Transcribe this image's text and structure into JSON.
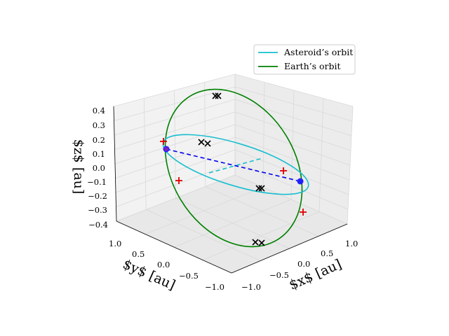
{
  "chart_data": {
    "type": "line",
    "projection": "3d",
    "xlabel": "$x$ [au]",
    "ylabel": "$y$ [au]",
    "zlabel": "$z$ [au]",
    "x_ticks": [
      "−1.0",
      "−0.5",
      "0.0",
      "0.5",
      "1.0"
    ],
    "y_ticks": [
      "−1.0",
      "−0.5",
      "0.0",
      "0.5",
      "1.0"
    ],
    "z_ticks": [
      "−0.4",
      "−0.3",
      "−0.2",
      "−0.1",
      "0.0",
      "0.1",
      "0.2",
      "0.3",
      "0.4"
    ],
    "xlim": [
      -1.1,
      1.1
    ],
    "ylim": [
      -1.1,
      1.1
    ],
    "zlim": [
      -0.4,
      0.4
    ],
    "grid": true,
    "legend": "top-right",
    "series": [
      {
        "name": "Asteroid’s orbit",
        "color": "#17becf",
        "semi_major_axis": 0.95,
        "semi_minor_axis": 0.8,
        "inclination_deg": 10
      },
      {
        "name": "Earth’s orbit",
        "color": "#008000",
        "radius": 1.0
      }
    ],
    "markers": {
      "blue_points": [
        [
          0.95,
          0.0,
          0.0
        ],
        [
          -0.95,
          0.5,
          0.1
        ]
      ],
      "red_plus": [
        [
          0.7,
          0.0,
          0.0
        ],
        [
          -0.4,
          0.6,
          0.08
        ],
        [
          -0.6,
          0.8,
          -0.1
        ],
        [
          0.95,
          -0.4,
          -0.1
        ]
      ],
      "black_x": [
        [
          -0.2,
          0.9,
          0.3
        ],
        [
          -0.4,
          0.5,
          0.1
        ],
        [
          0.2,
          -0.4,
          -0.05
        ],
        [
          0.2,
          -0.9,
          -0.25
        ]
      ]
    }
  },
  "legend": {
    "asteroid_label": "Asteroid’s orbit",
    "earth_label": "Earth’s orbit"
  }
}
